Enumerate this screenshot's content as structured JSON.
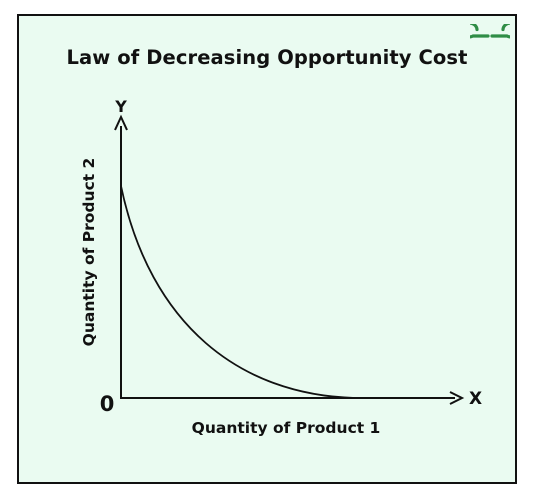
{
  "title": "Law of Decreasing Opportunity Cost",
  "logo": {
    "icon": "geeksforgeeks-logo-icon",
    "color": "#2f8d46"
  },
  "diagram": {
    "x_axis_letter": "X",
    "y_axis_letter": "Y",
    "origin_label": "0",
    "x_axis_label": "Quantity of Product 1",
    "y_axis_label": "Quantity of Product 2",
    "curve": "convex production possibility curve, bowed inward toward the origin",
    "colors": {
      "background": "#eafbf1",
      "lines": "#111111"
    }
  }
}
